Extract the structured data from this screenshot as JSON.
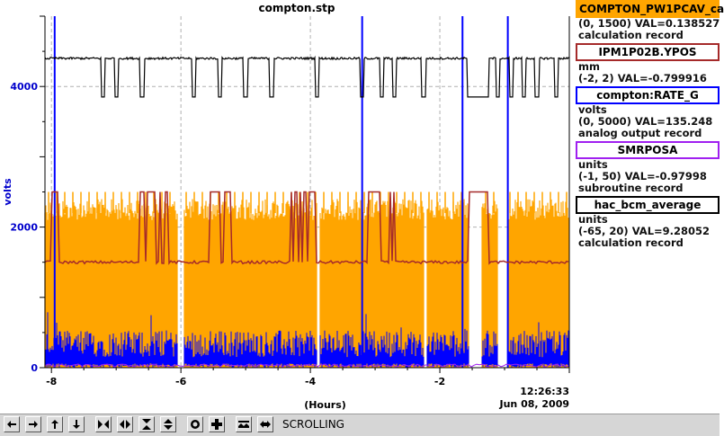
{
  "window": {
    "title": "compton.stp"
  },
  "chart_data": {
    "type": "line",
    "title": "compton.stp",
    "xlabel": "(Hours)",
    "ylabel": "volts",
    "xlim": [
      -8.1,
      0.0
    ],
    "ylim": [
      0,
      5000
    ],
    "x_ticks": [
      -8,
      -6,
      -4,
      -2
    ],
    "y_ticks": [
      0,
      2000,
      4000
    ],
    "grid": true,
    "timestamp": {
      "time": "12:26:33",
      "date": "Jun 08, 2009"
    },
    "series": [
      {
        "name": "COMPTON_PW1PCAV_ca",
        "color": "#ffa500",
        "range": "(0, 1500)",
        "value": "VAL=0.138527",
        "record": "calculation record",
        "units": ""
      },
      {
        "name": "IPM1P02B.YPOS",
        "color": "#a52a2a",
        "range": "(-2, 2)",
        "value": "VAL=-0.799916",
        "record": "",
        "units": "mm"
      },
      {
        "name": "compton:RATE_G",
        "color": "#0000ff",
        "range": "(0, 5000)",
        "value": "VAL=135.248",
        "record": "analog output record",
        "units": "volts"
      },
      {
        "name": "SMRPOSA",
        "color": "#a020f0",
        "range": "(-1, 50)",
        "value": "VAL=-0.97998",
        "record": "subroutine record",
        "units": "units"
      },
      {
        "name": "hac_bcm_average",
        "color": "#000000",
        "range": "(-65, 20)",
        "value": "VAL=9.28052",
        "record": "calculation record",
        "units": "units"
      }
    ],
    "approx_levels": {
      "black_high": 4400,
      "black_low": 3850,
      "orange_top": 2400,
      "brown_mid": 1500,
      "brown_high": 2500,
      "blue_band_max": 500,
      "gaps": [
        [
          -6.05,
          -5.95
        ],
        [
          -3.9,
          -3.85
        ],
        [
          -2.25,
          -2.2
        ],
        [
          -1.55,
          -1.35
        ],
        [
          -1.1,
          -0.95
        ]
      ],
      "black_dips": [
        -7.2,
        -7.0,
        -6.6,
        -5.8,
        -5.4,
        -5.0,
        -4.6,
        -3.9,
        -3.2,
        -2.9,
        -2.7,
        -2.25,
        -1.55,
        -1.45,
        -1.35,
        -1.1,
        -0.9,
        -0.7,
        -0.5,
        -0.2
      ],
      "blue_spikes": [
        -7.95,
        -3.2,
        -1.65,
        -0.95
      ],
      "brown_high_intervals": [
        [
          -8.0,
          -7.9
        ],
        [
          -6.7,
          -6.2
        ],
        [
          -5.6,
          -5.2
        ],
        [
          -4.3,
          -3.9
        ],
        [
          -3.1,
          -2.7
        ],
        [
          -1.55,
          -1.25
        ]
      ]
    }
  },
  "toolbar": {
    "status": "SCROLLING",
    "buttons": [
      "arrow-left-icon",
      "arrow-right-icon",
      "arrow-up-icon",
      "arrow-down-icon",
      "zoom-in-x-icon",
      "zoom-out-x-icon",
      "zoom-in-y-icon",
      "zoom-out-y-icon",
      "stop-icon",
      "plus-icon",
      "auto-scale-icon",
      "undo-zoom-icon"
    ]
  }
}
